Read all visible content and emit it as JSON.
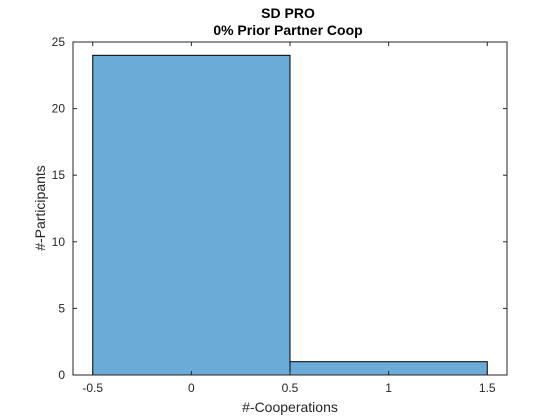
{
  "chart_data": {
    "type": "bar",
    "title": "SD PRO",
    "subtitle": "0% Prior Partner Coop",
    "xlabel": "#-Cooperations",
    "ylabel": "#-Participants",
    "xlim": [
      -0.6,
      1.6
    ],
    "ylim": [
      0,
      25
    ],
    "x_ticks": [
      -0.5,
      0,
      0.5,
      1,
      1.5
    ],
    "x_tick_labels": [
      "-0.5",
      "0",
      "0.5",
      "1",
      "1.5"
    ],
    "y_ticks": [
      0,
      5,
      10,
      15,
      20,
      25
    ],
    "y_tick_labels": [
      "0",
      "5",
      "10",
      "15",
      "20",
      "25"
    ],
    "bins": [
      {
        "center": 0,
        "start": -0.5,
        "end": 0.5,
        "value": 24
      },
      {
        "center": 1,
        "start": 0.5,
        "end": 1.5,
        "value": 1
      }
    ],
    "grid": false,
    "colors": {
      "bar_fill": "#6aabd8",
      "bar_edge": "#000000",
      "axis": "#262626"
    }
  }
}
